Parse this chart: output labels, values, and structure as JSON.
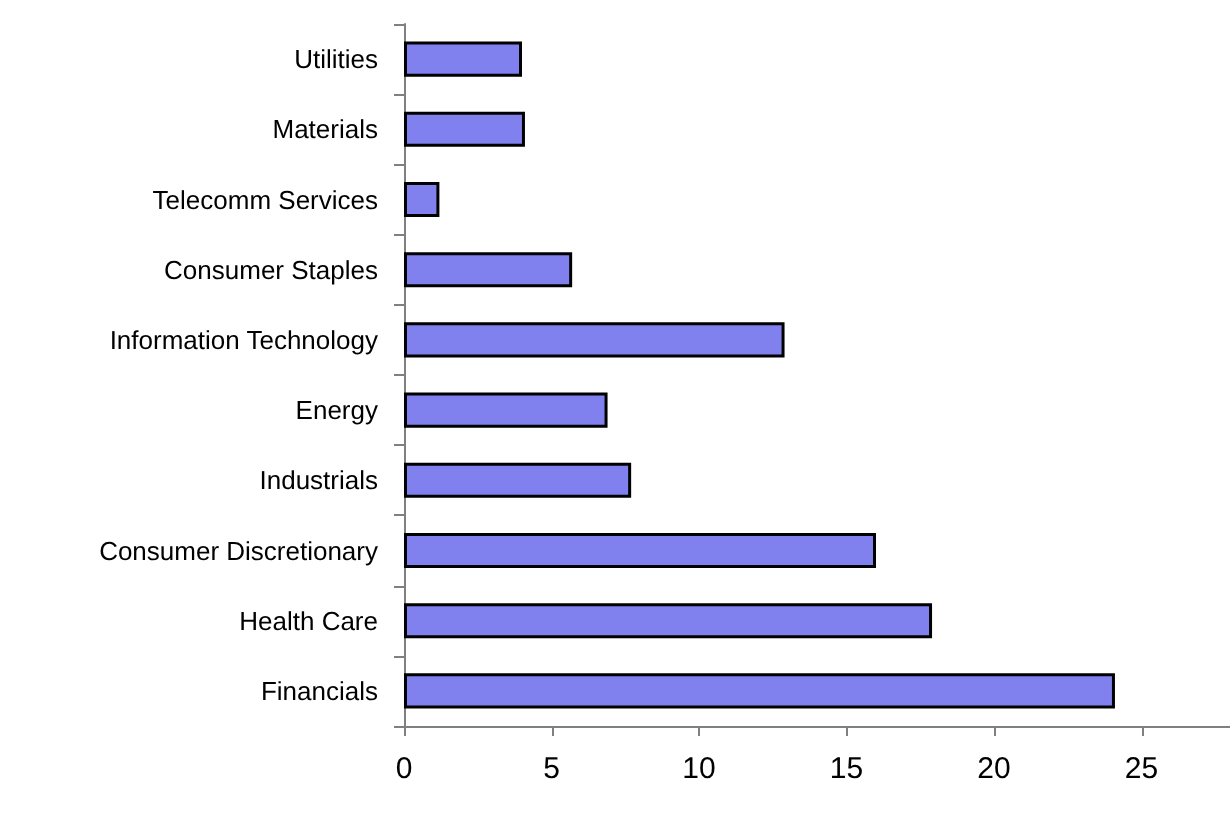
{
  "chart_data": {
    "type": "bar",
    "orientation": "horizontal",
    "categories": [
      "Utilities",
      "Materials",
      "Telecomm Services",
      "Consumer Staples",
      "Information Technology",
      "Energy",
      "Industrials",
      "Consumer Discretionary",
      "Health Care",
      "Financials"
    ],
    "values": [
      4.0,
      4.1,
      1.2,
      5.7,
      12.9,
      6.9,
      7.7,
      16.0,
      17.9,
      24.1
    ],
    "color": "#8080ee",
    "xlim": [
      0,
      28
    ],
    "xticks": [
      0,
      5,
      10,
      15,
      20,
      25
    ],
    "grid": false
  }
}
